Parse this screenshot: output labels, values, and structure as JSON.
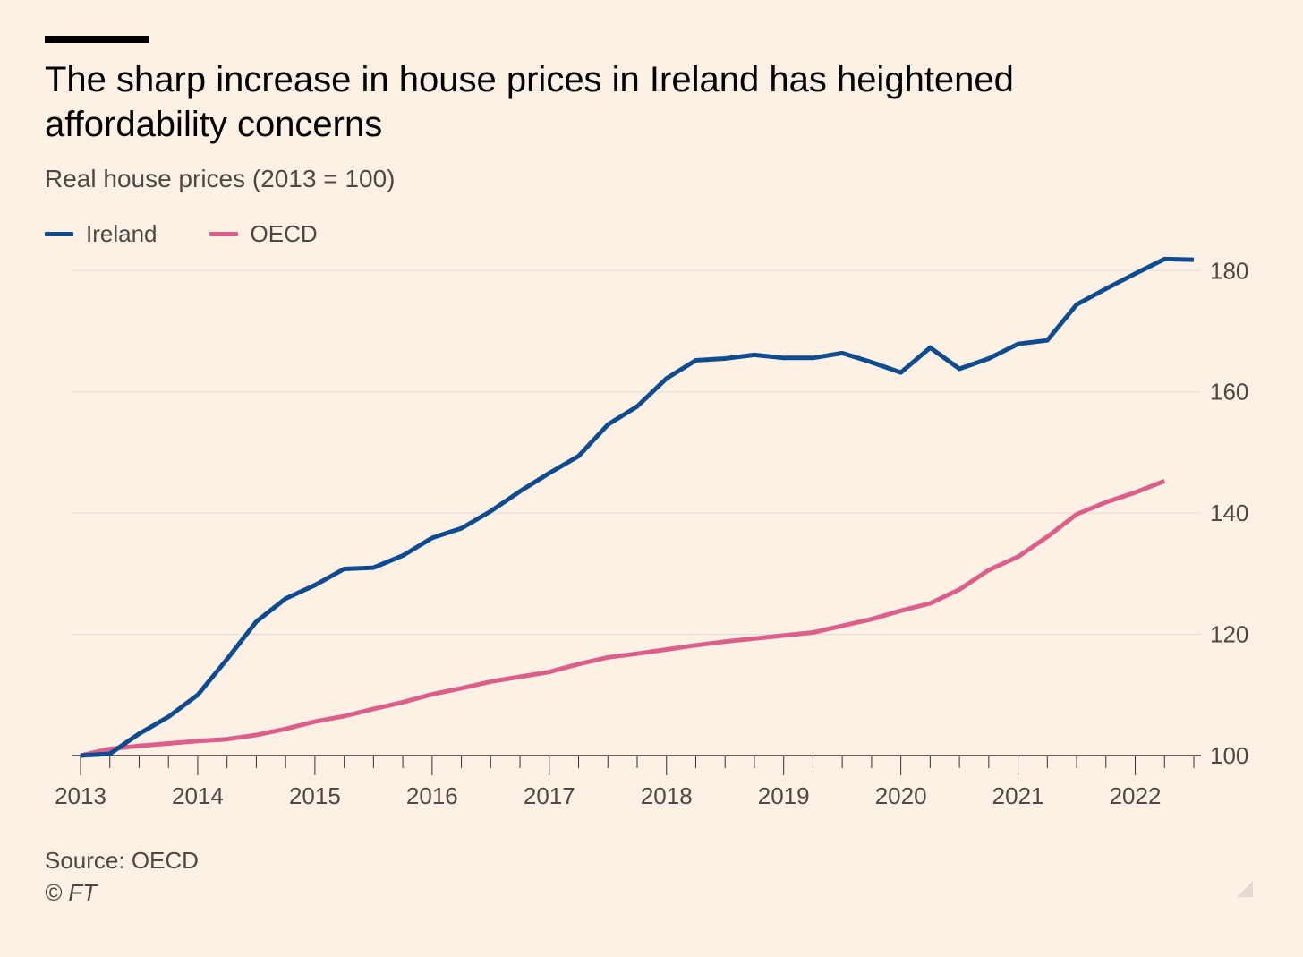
{
  "title": "The sharp increase in house prices in Ireland has heightened affordability concerns",
  "subtitle": "Real house prices (2013 = 100)",
  "legend": [
    {
      "label": "Ireland",
      "color": "#0f4c8f"
    },
    {
      "label": "OECD",
      "color": "#db5f8a"
    }
  ],
  "footer": {
    "source": "Source: OECD",
    "copyright": "© FT"
  },
  "colors": {
    "background": "#fdf1e5",
    "grid": "#e3dbd2",
    "axis": "#33302e",
    "tick_text": "#4d4845"
  },
  "chart_data": {
    "type": "line",
    "x_tick_labels": [
      "2013",
      "2014",
      "2015",
      "2016",
      "2017",
      "2018",
      "2019",
      "2020",
      "2021",
      "2022"
    ],
    "y_ticks": [
      100,
      120,
      140,
      160,
      180
    ],
    "ylim": [
      100,
      183
    ],
    "xlim": [
      2013,
      2022.5
    ],
    "y_axis_side": "right",
    "grid": "horizontal",
    "legend_position": "top-left",
    "series": [
      {
        "name": "Ireland",
        "color": "#0f4c8f",
        "x": [
          2013,
          2013.25,
          2013.5,
          2013.75,
          2014,
          2014.25,
          2014.5,
          2014.75,
          2015,
          2015.25,
          2015.5,
          2015.75,
          2016,
          2016.25,
          2016.5,
          2016.75,
          2017,
          2017.25,
          2017.5,
          2017.75,
          2018,
          2018.25,
          2018.5,
          2018.75,
          2019,
          2019.25,
          2019.5,
          2019.75,
          2020,
          2020.25,
          2020.5,
          2020.75,
          2021,
          2021.25,
          2021.5,
          2021.75,
          2022,
          2022.25,
          2022.5
        ],
        "y": [
          100,
          100.3,
          103.6,
          106.4,
          110,
          115.9,
          122.1,
          125.9,
          128.1,
          130.8,
          131.0,
          133.0,
          135.9,
          137.5,
          140.3,
          143.6,
          146.6,
          149.4,
          154.6,
          157.6,
          162.2,
          165.2,
          165.5,
          166.1,
          165.6,
          165.6,
          166.4,
          164.9,
          163.2,
          167.3,
          163.8,
          165.5,
          167.9,
          168.5,
          174.4,
          177.0,
          179.5,
          181.9,
          181.8
        ]
      },
      {
        "name": "OECD",
        "color": "#db5f8a",
        "x": [
          2013,
          2013.25,
          2013.5,
          2013.75,
          2014,
          2014.25,
          2014.5,
          2014.75,
          2015,
          2015.25,
          2015.5,
          2015.75,
          2016,
          2016.25,
          2016.5,
          2016.75,
          2017,
          2017.25,
          2017.5,
          2017.75,
          2018,
          2018.25,
          2018.5,
          2018.75,
          2019,
          2019.25,
          2019.5,
          2019.75,
          2020,
          2020.25,
          2020.5,
          2020.75,
          2021,
          2021.25,
          2021.5,
          2021.75,
          2022,
          2022.25
        ],
        "y": [
          100,
          101.1,
          101.6,
          102.0,
          102.4,
          102.7,
          103.4,
          104.4,
          105.6,
          106.5,
          107.7,
          108.8,
          110.1,
          111.1,
          112.2,
          113.0,
          113.8,
          115.1,
          116.2,
          116.8,
          117.5,
          118.2,
          118.8,
          119.3,
          119.8,
          120.3,
          121.4,
          122.5,
          123.9,
          125.1,
          127.4,
          130.6,
          132.8,
          136.1,
          139.8,
          141.8,
          143.4,
          145.3
        ]
      }
    ]
  }
}
